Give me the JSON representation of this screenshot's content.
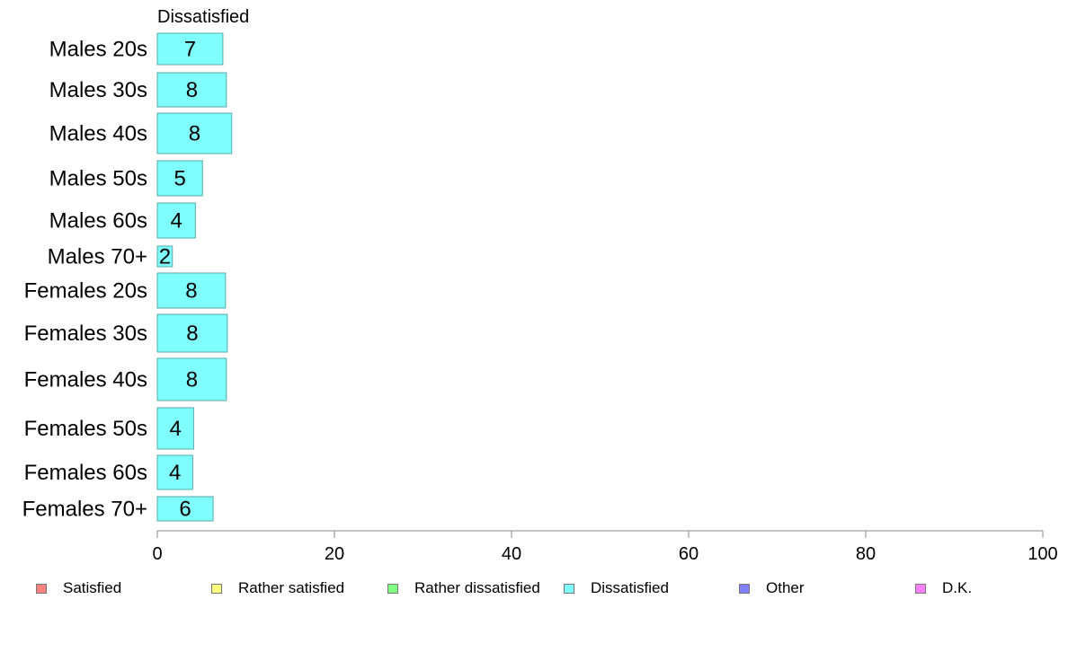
{
  "chart_data": {
    "type": "bar",
    "orientation": "horizontal",
    "stacked": true,
    "title": "Dissatisfied",
    "xlim": [
      0,
      100
    ],
    "x_ticks": [
      0,
      20,
      40,
      60,
      80,
      100
    ],
    "grid": false,
    "legend_position": "bottom",
    "categories": [
      "Males 20s",
      "Males 30s",
      "Males 40s",
      "Males 50s",
      "Males 60s",
      "Males 70+",
      "Females 20s",
      "Females 30s",
      "Females 40s",
      "Females 50s",
      "Females 60s",
      "Females 70+"
    ],
    "series": [
      {
        "name": "Dissatisfied",
        "color": "#80ffff",
        "values": [
          7.4,
          7.8,
          8.4,
          5.1,
          4.3,
          1.7,
          7.7,
          7.9,
          7.8,
          4.1,
          4.0,
          6.3
        ],
        "labels": [
          "7",
          "8",
          "8",
          "5",
          "4",
          "2",
          "8",
          "8",
          "8",
          "4",
          "4",
          "6"
        ]
      }
    ],
    "legend": [
      {
        "name": "Satisfied",
        "color": "#ff8080"
      },
      {
        "name": "Rather satisfied",
        "color": "#ffff80"
      },
      {
        "name": "Rather dissatisfied",
        "color": "#80ff80"
      },
      {
        "name": "Dissatisfied",
        "color": "#80ffff"
      },
      {
        "name": "Other",
        "color": "#8080ff"
      },
      {
        "name": "D.K.",
        "color": "#ff80ff"
      }
    ]
  }
}
